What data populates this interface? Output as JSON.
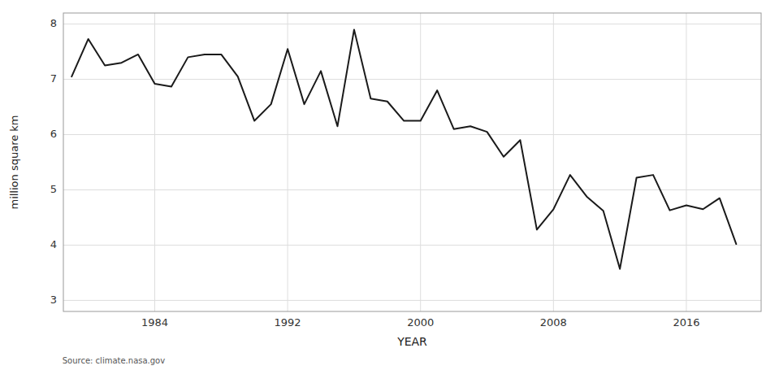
{
  "chart_data": {
    "type": "line",
    "x": [
      1979,
      1980,
      1981,
      1982,
      1983,
      1984,
      1985,
      1986,
      1987,
      1988,
      1989,
      1990,
      1991,
      1992,
      1993,
      1994,
      1995,
      1996,
      1997,
      1998,
      1999,
      2000,
      2001,
      2002,
      2003,
      2004,
      2005,
      2006,
      2007,
      2008,
      2009,
      2010,
      2011,
      2012,
      2013,
      2014,
      2015,
      2016,
      2017,
      2018,
      2019
    ],
    "values": [
      7.05,
      7.73,
      7.25,
      7.3,
      7.45,
      6.92,
      6.87,
      7.4,
      7.45,
      7.45,
      7.05,
      6.25,
      6.55,
      7.55,
      6.55,
      7.15,
      6.15,
      7.9,
      6.65,
      6.6,
      6.25,
      6.25,
      6.8,
      6.1,
      6.15,
      6.05,
      5.6,
      5.9,
      4.28,
      4.65,
      5.27,
      4.88,
      4.62,
      3.57,
      5.22,
      5.27,
      4.63,
      4.72,
      4.65,
      4.85,
      4.02
    ],
    "xlabel": "YEAR",
    "ylabel": "million square km",
    "xlim": [
      1978.5,
      2020.5
    ],
    "ylim": [
      2.8,
      8.2
    ],
    "xticks": [
      1984,
      1992,
      2000,
      2008,
      2016
    ],
    "yticks": [
      3,
      4,
      5,
      6,
      7,
      8
    ],
    "color": "#1a1a1a",
    "grid": true,
    "annotations": [
      "Source: climate.nasa.gov"
    ]
  }
}
